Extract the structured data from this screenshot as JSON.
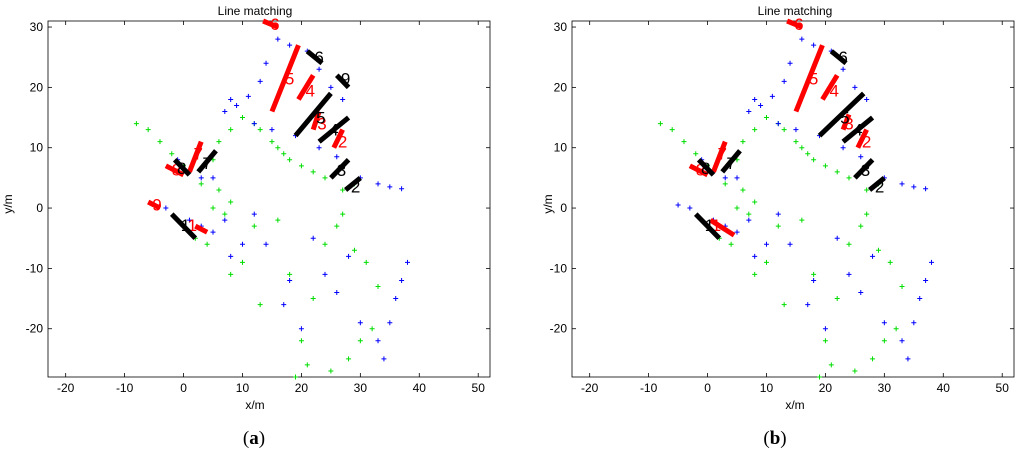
{
  "chart_data": [
    {
      "panel": "a",
      "type": "scatter",
      "caption_open": "(",
      "caption_letter": "a",
      "caption_close": ")",
      "title": "Line matching",
      "xlabel": "x/m",
      "ylabel": "y/m",
      "xlim": [
        -23,
        52
      ],
      "ylim": [
        -28,
        31
      ],
      "xticks": [
        "-20",
        "-10",
        "0",
        "10",
        "20",
        "30",
        "40",
        "50"
      ],
      "xtick_values": [
        -20,
        -10,
        0,
        10,
        20,
        30,
        40,
        50
      ],
      "yticks": [
        "30",
        "20",
        "10",
        "0",
        "-10",
        "-20"
      ],
      "ytick_values": [
        30,
        20,
        10,
        0,
        -10,
        -20
      ],
      "colors": {
        "blue": "#0000ff",
        "green": "#00dd00",
        "red": "#ff0000",
        "black": "#000000"
      },
      "blue_points": [
        [
          -1,
          8
        ],
        [
          1,
          6
        ],
        [
          3,
          5
        ],
        [
          5,
          5
        ],
        [
          7,
          16
        ],
        [
          8,
          18
        ],
        [
          9,
          17
        ],
        [
          11,
          18.5
        ],
        [
          13,
          21
        ],
        [
          14,
          24
        ],
        [
          16,
          28
        ],
        [
          18,
          27
        ],
        [
          21,
          26
        ],
        [
          23,
          23
        ],
        [
          25,
          20
        ],
        [
          27,
          18
        ],
        [
          12,
          14
        ],
        [
          15,
          13
        ],
        [
          19,
          12
        ],
        [
          23,
          10
        ],
        [
          26,
          8.5
        ],
        [
          30,
          5
        ],
        [
          33,
          4
        ],
        [
          35,
          3.5
        ],
        [
          37,
          3.2
        ],
        [
          -5,
          0.5
        ],
        [
          -3,
          0
        ],
        [
          1,
          -2
        ],
        [
          3,
          -3
        ],
        [
          5,
          -4
        ],
        [
          7,
          -2
        ],
        [
          8,
          -8
        ],
        [
          10,
          -6
        ],
        [
          12,
          -1
        ],
        [
          14,
          -6
        ],
        [
          17,
          -16
        ],
        [
          18,
          -12
        ],
        [
          20,
          -20
        ],
        [
          22,
          -5
        ],
        [
          24,
          -11
        ],
        [
          26,
          -14
        ],
        [
          28,
          -8
        ],
        [
          30,
          -19
        ],
        [
          33,
          -22
        ],
        [
          34,
          -25
        ],
        [
          35,
          -19
        ],
        [
          36,
          -15
        ],
        [
          37,
          -12
        ],
        [
          38,
          -9
        ]
      ],
      "green_points": [
        [
          -8,
          14
        ],
        [
          -6,
          13
        ],
        [
          -4,
          11
        ],
        [
          -2,
          9
        ],
        [
          0,
          7
        ],
        [
          1,
          6
        ],
        [
          3,
          4
        ],
        [
          5,
          8
        ],
        [
          6,
          11
        ],
        [
          8,
          13
        ],
        [
          10,
          15
        ],
        [
          12,
          14
        ],
        [
          13,
          13
        ],
        [
          15,
          11
        ],
        [
          16,
          10
        ],
        [
          17,
          9
        ],
        [
          18,
          8
        ],
        [
          20,
          7
        ],
        [
          22,
          6
        ],
        [
          24,
          5
        ],
        [
          27,
          3
        ],
        [
          29,
          4
        ],
        [
          8,
          1
        ],
        [
          6,
          3
        ],
        [
          7,
          -1
        ],
        [
          5,
          0
        ],
        [
          4,
          -6
        ],
        [
          2,
          -5
        ],
        [
          8,
          -11
        ],
        [
          10,
          -9
        ],
        [
          12,
          -3
        ],
        [
          13,
          -16
        ],
        [
          16,
          -2
        ],
        [
          18,
          -11
        ],
        [
          20,
          -22
        ],
        [
          21,
          -26
        ],
        [
          22,
          -15
        ],
        [
          24,
          -6
        ],
        [
          26,
          -3
        ],
        [
          27,
          -1
        ],
        [
          29,
          -7
        ],
        [
          31,
          -9
        ],
        [
          33,
          -13
        ],
        [
          28,
          -25
        ],
        [
          30,
          -22
        ],
        [
          32,
          -20
        ],
        [
          25,
          -27
        ],
        [
          19,
          -28
        ]
      ],
      "red_segments": [
        {
          "label": "6",
          "x1": 13.5,
          "y1": 31,
          "x2": 16,
          "y2": 30,
          "lx": 15.5,
          "ly": 30.5
        },
        {
          "label": "5",
          "x1": 15,
          "y1": 16,
          "x2": 19.5,
          "y2": 27,
          "lx": 18,
          "ly": 21.5
        },
        {
          "label": "4",
          "x1": 19.5,
          "y1": 18,
          "x2": 22,
          "y2": 22,
          "lx": 21.5,
          "ly": 19.5
        },
        {
          "label": "3",
          "x1": 22,
          "y1": 13,
          "x2": 23,
          "y2": 16,
          "lx": 23.5,
          "ly": 14
        },
        {
          "label": "2",
          "x1": 25.5,
          "y1": 10,
          "x2": 27,
          "y2": 13,
          "lx": 27,
          "ly": 11
        },
        {
          "label": "7",
          "x1": 1,
          "y1": 6,
          "x2": 3,
          "y2": 11,
          "lx": 2.5,
          "ly": 9
        },
        {
          "label": "8",
          "x1": -3,
          "y1": 7,
          "x2": 0,
          "y2": 5.5,
          "lx": -1.2,
          "ly": 6.4
        },
        {
          "label": "9",
          "x1": -6,
          "y1": 1,
          "x2": -4,
          "y2": 0,
          "lx": -4.5,
          "ly": 0.6
        },
        {
          "label": "1",
          "x1": 2,
          "y1": -3,
          "x2": 4,
          "y2": -4,
          "lx": 1.5,
          "ly": -2.8
        }
      ],
      "black_segments": [
        {
          "label": "6",
          "x1": 21,
          "y1": 26,
          "x2": 23.5,
          "y2": 24,
          "lx": 23,
          "ly": 25
        },
        {
          "label": "9",
          "x1": 26,
          "y1": 22,
          "x2": 28,
          "y2": 20,
          "lx": 27.5,
          "ly": 21.5
        },
        {
          "label": "5",
          "x1": 19,
          "y1": 12,
          "x2": 25,
          "y2": 19,
          "lx": 23.3,
          "ly": 15
        },
        {
          "label": "4",
          "x1": 23,
          "y1": 11,
          "x2": 28,
          "y2": 15,
          "lx": 25.5,
          "ly": 13
        },
        {
          "label": "3",
          "x1": 25,
          "y1": 5,
          "x2": 28,
          "y2": 8,
          "lx": 26.8,
          "ly": 6.3
        },
        {
          "label": "2",
          "x1": 27.5,
          "y1": 3,
          "x2": 30,
          "y2": 5,
          "lx": 29.2,
          "ly": 3.6
        },
        {
          "label": "7",
          "x1": 2.5,
          "y1": 6,
          "x2": 5.5,
          "y2": 9.5,
          "lx": 4,
          "ly": 7.5
        },
        {
          "label": "8",
          "x1": -1.5,
          "y1": 8,
          "x2": 1,
          "y2": 5.5,
          "lx": -0.3,
          "ly": 6.6
        },
        {
          "label": "1",
          "x1": -2,
          "y1": -1,
          "x2": 2,
          "y2": -5,
          "lx": 0.3,
          "ly": -2.8
        }
      ]
    },
    {
      "panel": "b",
      "type": "scatter",
      "caption_open": "(",
      "caption_letter": "b",
      "caption_close": ")",
      "title": "Line matching",
      "xlabel": "x/m",
      "ylabel": "y/m",
      "xlim": [
        -23,
        52
      ],
      "ylim": [
        -28,
        31
      ],
      "xticks": [
        "-20",
        "-10",
        "0",
        "10",
        "20",
        "30",
        "40",
        "50"
      ],
      "xtick_values": [
        -20,
        -10,
        0,
        10,
        20,
        30,
        40,
        50
      ],
      "yticks": [
        "30",
        "20",
        "10",
        "0",
        "-10",
        "-20"
      ],
      "ytick_values": [
        30,
        20,
        10,
        0,
        -10,
        -20
      ],
      "colors": {
        "blue": "#0000ff",
        "green": "#00dd00",
        "red": "#ff0000",
        "black": "#000000"
      },
      "blue_points": [
        [
          -1,
          8
        ],
        [
          1,
          6
        ],
        [
          3,
          5
        ],
        [
          5,
          5
        ],
        [
          7,
          16
        ],
        [
          8,
          18
        ],
        [
          9,
          17
        ],
        [
          11,
          18.5
        ],
        [
          13,
          21
        ],
        [
          14,
          24
        ],
        [
          16,
          28
        ],
        [
          18,
          27
        ],
        [
          21,
          26
        ],
        [
          23,
          23
        ],
        [
          25,
          20
        ],
        [
          27,
          18
        ],
        [
          12,
          14
        ],
        [
          15,
          13
        ],
        [
          19,
          12
        ],
        [
          23,
          10
        ],
        [
          26,
          8.5
        ],
        [
          30,
          5
        ],
        [
          33,
          4
        ],
        [
          35,
          3.5
        ],
        [
          37,
          3.2
        ],
        [
          -5,
          0.5
        ],
        [
          -3,
          0
        ],
        [
          1,
          -2
        ],
        [
          3,
          -3
        ],
        [
          5,
          -4
        ],
        [
          7,
          -2
        ],
        [
          8,
          -8
        ],
        [
          10,
          -6
        ],
        [
          12,
          -1
        ],
        [
          14,
          -6
        ],
        [
          17,
          -16
        ],
        [
          18,
          -12
        ],
        [
          20,
          -20
        ],
        [
          22,
          -5
        ],
        [
          24,
          -11
        ],
        [
          26,
          -14
        ],
        [
          28,
          -8
        ],
        [
          30,
          -19
        ],
        [
          33,
          -22
        ],
        [
          34,
          -25
        ],
        [
          35,
          -19
        ],
        [
          36,
          -15
        ],
        [
          37,
          -12
        ],
        [
          38,
          -9
        ]
      ],
      "green_points": [
        [
          -8,
          14
        ],
        [
          -6,
          13
        ],
        [
          -4,
          11
        ],
        [
          -2,
          9
        ],
        [
          0,
          7
        ],
        [
          1,
          6
        ],
        [
          3,
          4
        ],
        [
          5,
          8
        ],
        [
          6,
          11
        ],
        [
          8,
          13
        ],
        [
          10,
          15
        ],
        [
          12,
          14
        ],
        [
          13,
          13
        ],
        [
          15,
          11
        ],
        [
          16,
          10
        ],
        [
          17,
          9
        ],
        [
          18,
          8
        ],
        [
          20,
          7
        ],
        [
          22,
          6
        ],
        [
          24,
          5
        ],
        [
          27,
          3
        ],
        [
          29,
          4
        ],
        [
          8,
          1
        ],
        [
          6,
          3
        ],
        [
          7,
          -1
        ],
        [
          5,
          0
        ],
        [
          4,
          -6
        ],
        [
          2,
          -5
        ],
        [
          8,
          -11
        ],
        [
          10,
          -9
        ],
        [
          12,
          -3
        ],
        [
          13,
          -16
        ],
        [
          16,
          -2
        ],
        [
          18,
          -11
        ],
        [
          20,
          -22
        ],
        [
          21,
          -26
        ],
        [
          22,
          -15
        ],
        [
          24,
          -6
        ],
        [
          26,
          -3
        ],
        [
          27,
          -1
        ],
        [
          29,
          -7
        ],
        [
          31,
          -9
        ],
        [
          33,
          -13
        ],
        [
          28,
          -25
        ],
        [
          30,
          -22
        ],
        [
          32,
          -20
        ],
        [
          25,
          -27
        ],
        [
          19,
          -28
        ]
      ],
      "red_segments": [
        {
          "label": "6",
          "x1": 13.5,
          "y1": 31,
          "x2": 16,
          "y2": 30,
          "lx": 15.5,
          "ly": 30.5
        },
        {
          "label": "5",
          "x1": 15,
          "y1": 16,
          "x2": 19.5,
          "y2": 27,
          "lx": 18,
          "ly": 21.5
        },
        {
          "label": "4",
          "x1": 19.5,
          "y1": 18,
          "x2": 22,
          "y2": 22,
          "lx": 21.5,
          "ly": 19.5
        },
        {
          "label": "3",
          "x1": 23,
          "y1": 13,
          "x2": 24,
          "y2": 15.5,
          "lx": 24,
          "ly": 14
        },
        {
          "label": "2",
          "x1": 25.5,
          "y1": 10,
          "x2": 27,
          "y2": 13,
          "lx": 27,
          "ly": 11
        },
        {
          "label": "7",
          "x1": 1,
          "y1": 6,
          "x2": 3,
          "y2": 11,
          "lx": 2.5,
          "ly": 9
        },
        {
          "label": "8",
          "x1": -3,
          "y1": 7,
          "x2": 0,
          "y2": 5.5,
          "lx": -1.2,
          "ly": 6.4
        },
        {
          "label": "1",
          "x1": 0.5,
          "y1": -2,
          "x2": 4.5,
          "y2": -4.5,
          "lx": 1.5,
          "ly": -2.8
        }
      ],
      "black_segments": [
        {
          "label": "6",
          "x1": 21,
          "y1": 26,
          "x2": 23.5,
          "y2": 24,
          "lx": 23,
          "ly": 25
        },
        {
          "label": "5",
          "x1": 19,
          "y1": 12,
          "x2": 26.5,
          "y2": 19,
          "lx": 23.3,
          "ly": 15
        },
        {
          "label": "4",
          "x1": 23,
          "y1": 11,
          "x2": 28,
          "y2": 15,
          "lx": 25.5,
          "ly": 13
        },
        {
          "label": "3",
          "x1": 25,
          "y1": 5,
          "x2": 28,
          "y2": 8,
          "lx": 26.8,
          "ly": 6.3
        },
        {
          "label": "2",
          "x1": 27.5,
          "y1": 3,
          "x2": 30,
          "y2": 5,
          "lx": 29.2,
          "ly": 3.6
        },
        {
          "label": "7",
          "x1": 2.5,
          "y1": 6,
          "x2": 5.5,
          "y2": 9.5,
          "lx": 4,
          "ly": 7.5
        },
        {
          "label": "8",
          "x1": -1.5,
          "y1": 8,
          "x2": 1,
          "y2": 5.5,
          "lx": -0.3,
          "ly": 6.6
        },
        {
          "label": "1",
          "x1": -2,
          "y1": -1,
          "x2": 2,
          "y2": -5,
          "lx": 0.3,
          "ly": -2.8
        }
      ]
    }
  ]
}
